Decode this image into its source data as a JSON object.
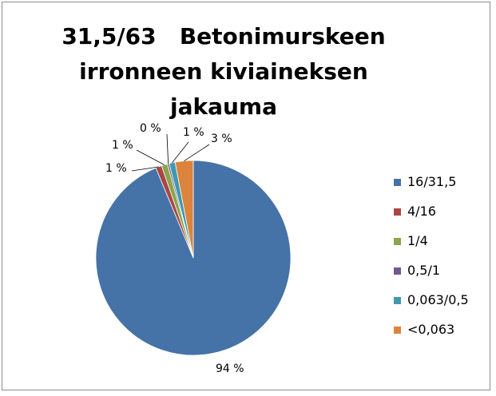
{
  "chart_data": {
    "type": "pie",
    "title_line1": "31,5/63   Betonimurskeen",
    "title_line2": "irronneen kiviaineksen",
    "title_line3": "jakauma",
    "categories": [
      "16/31,5",
      "4/16",
      "1/4",
      "0,5/1",
      "0,063/0,5",
      "<0,063"
    ],
    "values": [
      94,
      1,
      1,
      0,
      1,
      3
    ],
    "labels": [
      "94 %",
      "1 %",
      "1 %",
      "0 %",
      "1 %",
      "3 %"
    ],
    "colors": [
      "#4572A7",
      "#AA4643",
      "#89A54E",
      "#71588F",
      "#4198AF",
      "#DB843D"
    ],
    "legend_position": "right"
  }
}
